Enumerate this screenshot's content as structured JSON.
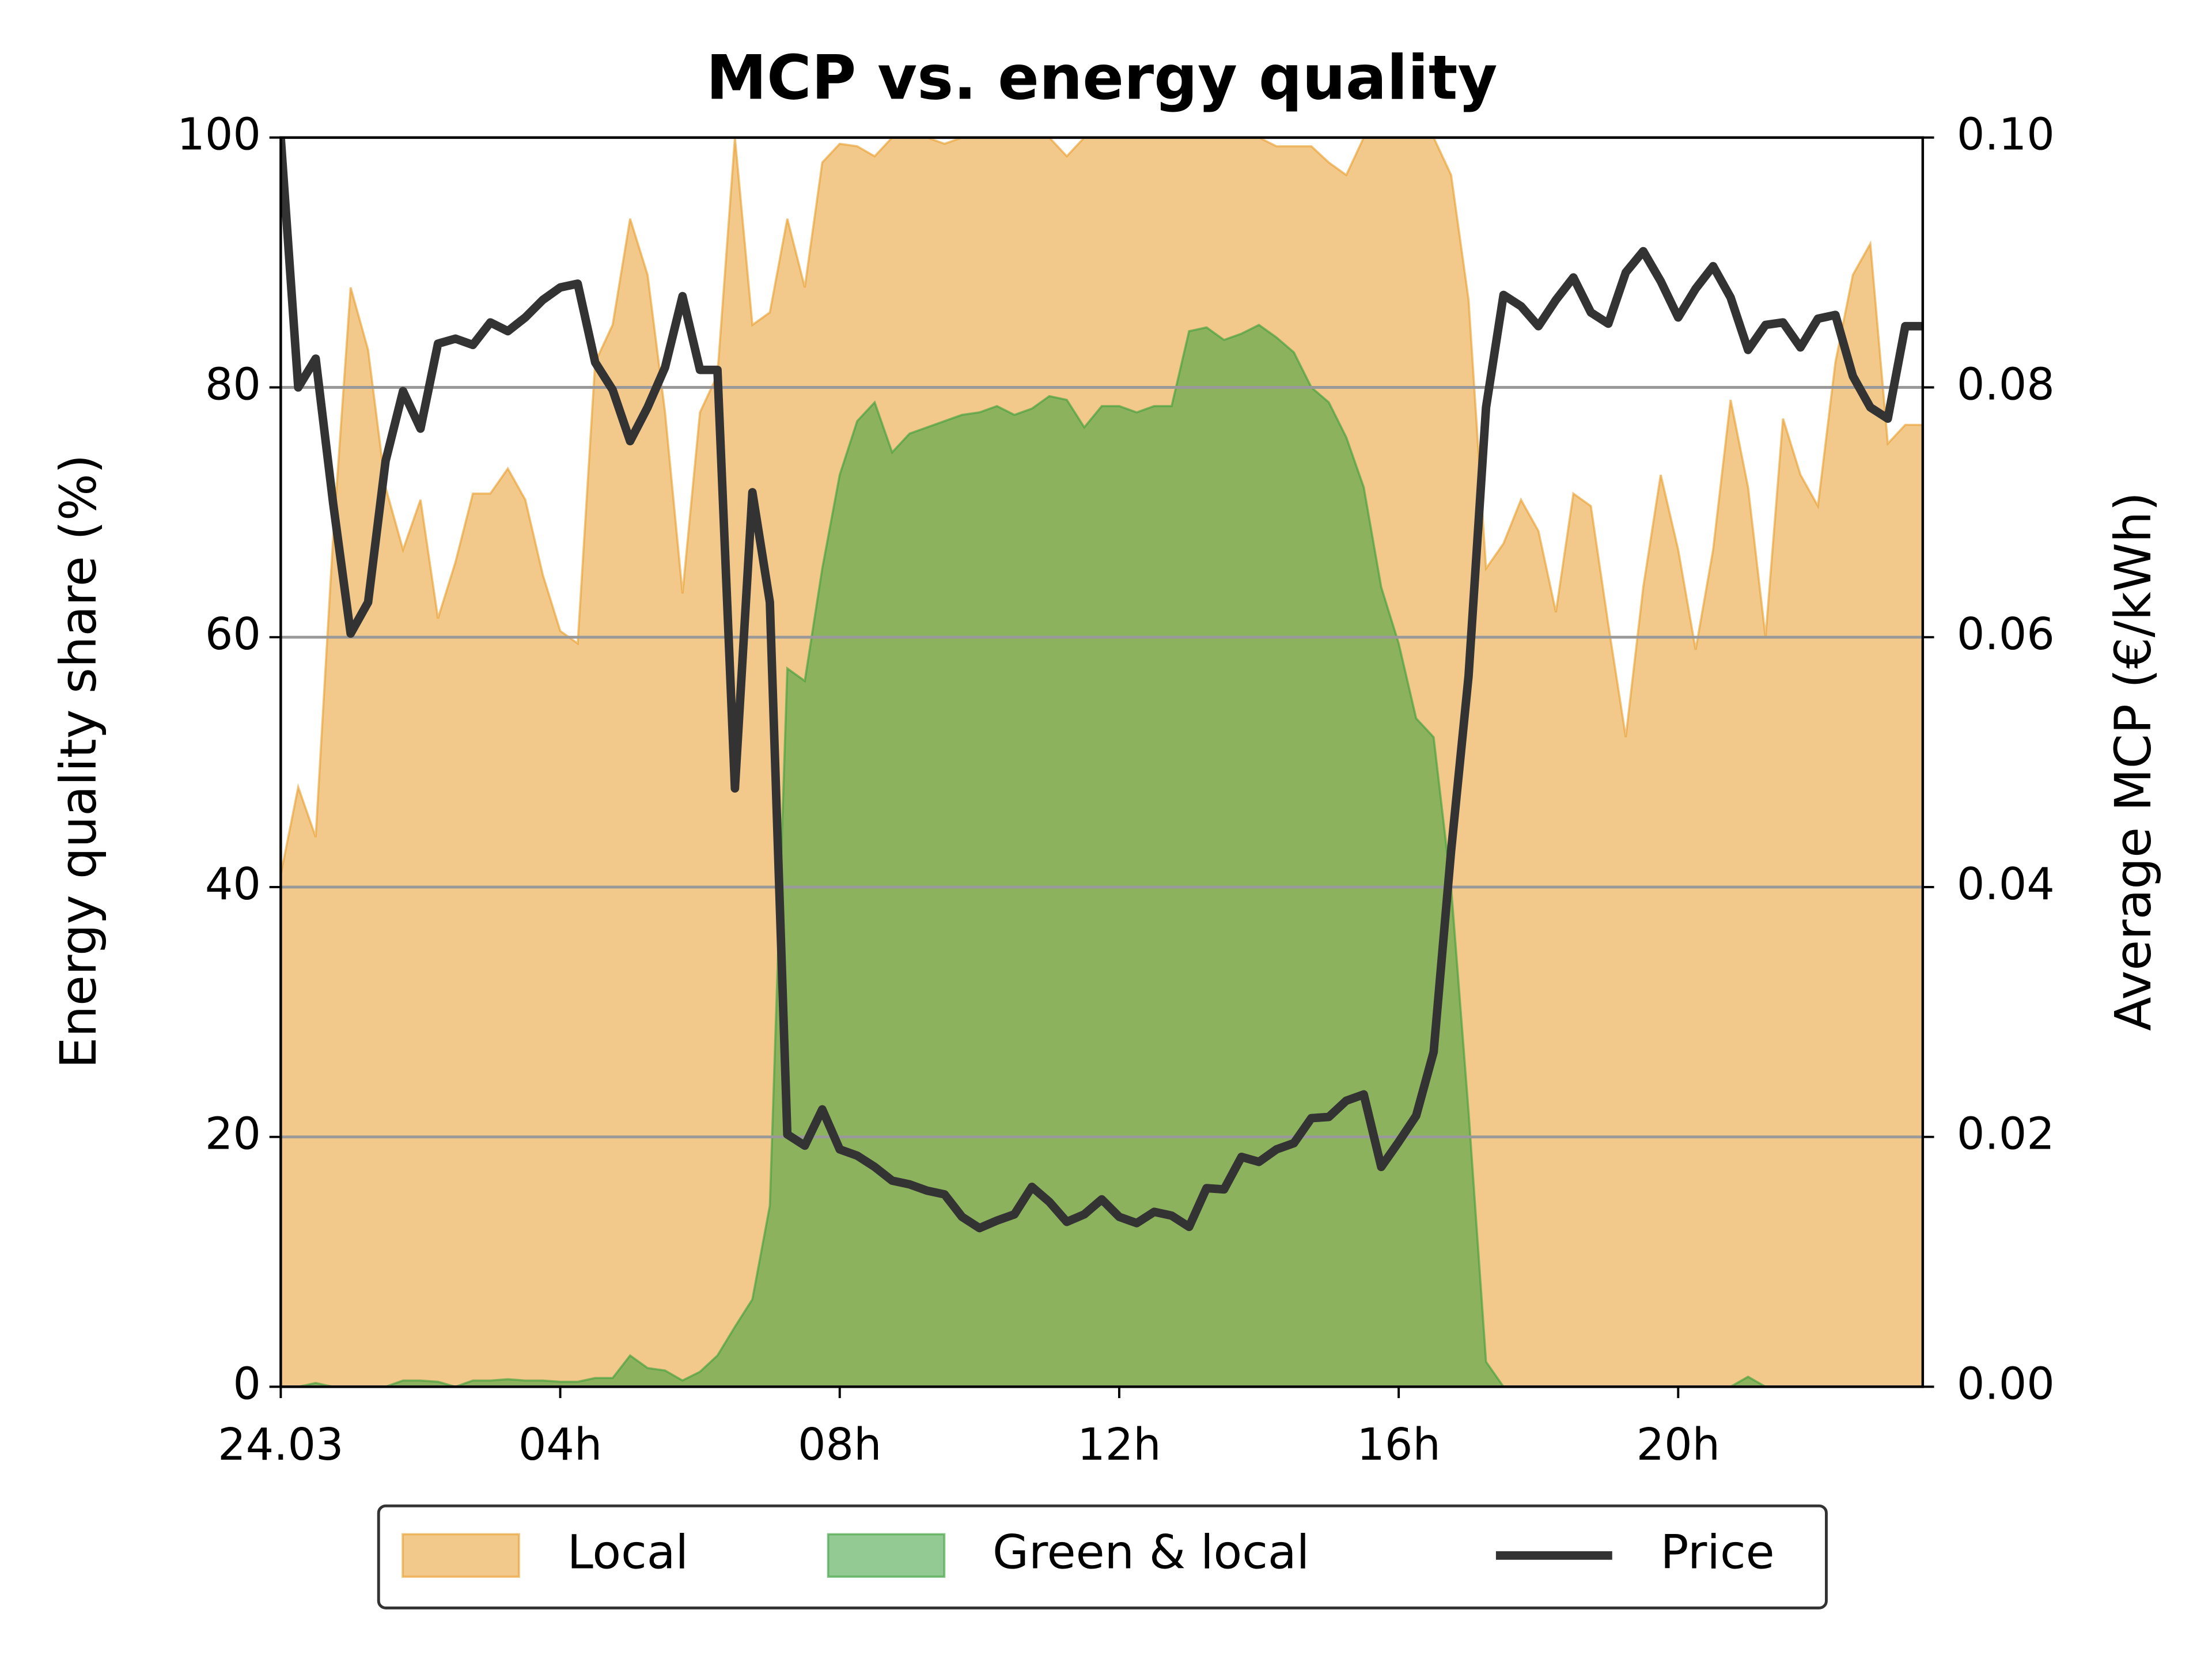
{
  "chart_data": {
    "type": "area_line",
    "title": "MCP vs. energy quality",
    "y_label": "Energy quality share (%)",
    "y2_label": "Average MCP (€/kWh)",
    "x": [
      0,
      0.25,
      0.5,
      0.75,
      1,
      1.25,
      1.5,
      1.75,
      2,
      2.25,
      2.5,
      2.75,
      3,
      3.25,
      3.5,
      3.75,
      4,
      4.25,
      4.5,
      4.75,
      5,
      5.25,
      5.5,
      5.75,
      6,
      6.25,
      6.5,
      6.75,
      7,
      7.25,
      7.5,
      7.75,
      8,
      8.25,
      8.5,
      8.75,
      9,
      9.25,
      9.5,
      9.75,
      10,
      10.25,
      10.5,
      10.75,
      11,
      11.25,
      11.5,
      11.75,
      12,
      12.25,
      12.5,
      12.75,
      13,
      13.25,
      13.5,
      13.75,
      14,
      14.25,
      14.5,
      14.75,
      15,
      15.25,
      15.5,
      15.75,
      16,
      16.25,
      16.5,
      16.75,
      17,
      17.25,
      17.5,
      17.75,
      18,
      18.25,
      18.5,
      18.75,
      19,
      19.25,
      19.5,
      19.75,
      20,
      20.25,
      20.5,
      20.75,
      21,
      21.25,
      21.5,
      21.75,
      22,
      22.25,
      22.5,
      22.75,
      23,
      23.25,
      23.5
    ],
    "xlim": [
      0,
      23.5
    ],
    "xticks": [
      {
        "value": 0,
        "label": "24.03"
      },
      {
        "value": 4,
        "label": "04h"
      },
      {
        "value": 8,
        "label": "08h"
      },
      {
        "value": 12,
        "label": "12h"
      },
      {
        "value": 16,
        "label": "16h"
      },
      {
        "value": 20,
        "label": "20h"
      }
    ],
    "ylim": [
      0,
      100
    ],
    "yticks": [
      0,
      20,
      40,
      60,
      80,
      100
    ],
    "y2lim": [
      0,
      0.1
    ],
    "y2ticks": [
      {
        "value": 0,
        "label": "0.00"
      },
      {
        "value": 0.02,
        "label": "0.02"
      },
      {
        "value": 0.04,
        "label": "0.04"
      },
      {
        "value": 0.06,
        "label": "0.06"
      },
      {
        "value": 0.08,
        "label": "0.08"
      },
      {
        "value": 0.1,
        "label": "0.10"
      }
    ],
    "grid": true,
    "legend": "bottom",
    "series": [
      {
        "name": "Local",
        "kind": "area",
        "color": "#e89c2a",
        "values": [
          41,
          48,
          44,
          68,
          88,
          83,
          72,
          67,
          71,
          61.5,
          66,
          71.5,
          71.5,
          73.5,
          71,
          65,
          60.5,
          59.5,
          82,
          85,
          93.5,
          89,
          78,
          63.5,
          78,
          81,
          100,
          85,
          86,
          93.5,
          88,
          98,
          99.5,
          99.3,
          98.5,
          100,
          100,
          100,
          99.5,
          100,
          100,
          100,
          100,
          100,
          100,
          98.5,
          100,
          100,
          100,
          100,
          100,
          100,
          100,
          100,
          100,
          100,
          100,
          99.3,
          99.3,
          99.3,
          98,
          97,
          100,
          100,
          100,
          100,
          100,
          97,
          87,
          65.5,
          67.5,
          71,
          68.5,
          62,
          71.5,
          70.5,
          61,
          52,
          64,
          73,
          67,
          59,
          67,
          79,
          72,
          60,
          77.5,
          73,
          70.5,
          82,
          89,
          91.5,
          75.5,
          77,
          77
        ]
      },
      {
        "name": "Green & local",
        "kind": "area",
        "color": "#3a9f3a",
        "values": [
          0,
          0,
          0.3,
          0,
          0,
          0,
          0,
          0.5,
          0.5,
          0.4,
          0,
          0.5,
          0.5,
          0.6,
          0.5,
          0.5,
          0.4,
          0.4,
          0.7,
          0.7,
          2.5,
          1.5,
          1.3,
          0.5,
          1.2,
          2.5,
          4.8,
          7,
          14.5,
          57.5,
          56.5,
          65.5,
          73,
          77.3,
          78.8,
          74.8,
          76.3,
          76.8,
          77.3,
          77.8,
          78,
          78.5,
          77.8,
          78.3,
          79.3,
          79,
          76.8,
          78.5,
          78.5,
          78,
          78.5,
          78.5,
          84.5,
          84.8,
          83.8,
          84.3,
          85,
          84,
          82.8,
          80,
          78.8,
          76,
          72,
          64,
          59.5,
          53.5,
          52,
          40,
          22,
          2,
          0,
          0,
          0,
          0,
          0,
          0,
          0,
          0,
          0,
          0,
          0,
          0,
          0,
          0,
          0.8,
          0,
          0,
          0,
          0,
          0,
          0,
          0,
          0,
          0,
          0
        ]
      },
      {
        "name": "Price",
        "kind": "line",
        "axis": "y2",
        "color": "#333333",
        "values": [
          0.1,
          0.08,
          0.0823,
          0.0707,
          0.0603,
          0.0628,
          0.0741,
          0.0797,
          0.0767,
          0.0835,
          0.0839,
          0.0834,
          0.0852,
          0.0845,
          0.0856,
          0.087,
          0.088,
          0.0883,
          0.082,
          0.0798,
          0.0757,
          0.0784,
          0.0816,
          0.0873,
          0.0814,
          0.0814,
          0.0479,
          0.0716,
          0.0628,
          0.0202,
          0.0193,
          0.0222,
          0.019,
          0.0185,
          0.0176,
          0.0165,
          0.0162,
          0.0157,
          0.0154,
          0.0136,
          0.0127,
          0.0133,
          0.0138,
          0.016,
          0.0148,
          0.0132,
          0.0138,
          0.015,
          0.0136,
          0.0131,
          0.014,
          0.0137,
          0.0128,
          0.0159,
          0.0158,
          0.0184,
          0.018,
          0.019,
          0.0195,
          0.0215,
          0.0216,
          0.0229,
          0.0234,
          0.0176,
          0.0196,
          0.0217,
          0.0268,
          0.0429,
          0.0569,
          0.0784,
          0.0874,
          0.0865,
          0.0849,
          0.087,
          0.0888,
          0.086,
          0.0851,
          0.0892,
          0.0909,
          0.0885,
          0.0856,
          0.0879,
          0.0897,
          0.0872,
          0.083,
          0.085,
          0.0852,
          0.0832,
          0.0855,
          0.0858,
          0.0809,
          0.0784,
          0.0775,
          0.0849,
          0.0849
        ]
      }
    ]
  }
}
